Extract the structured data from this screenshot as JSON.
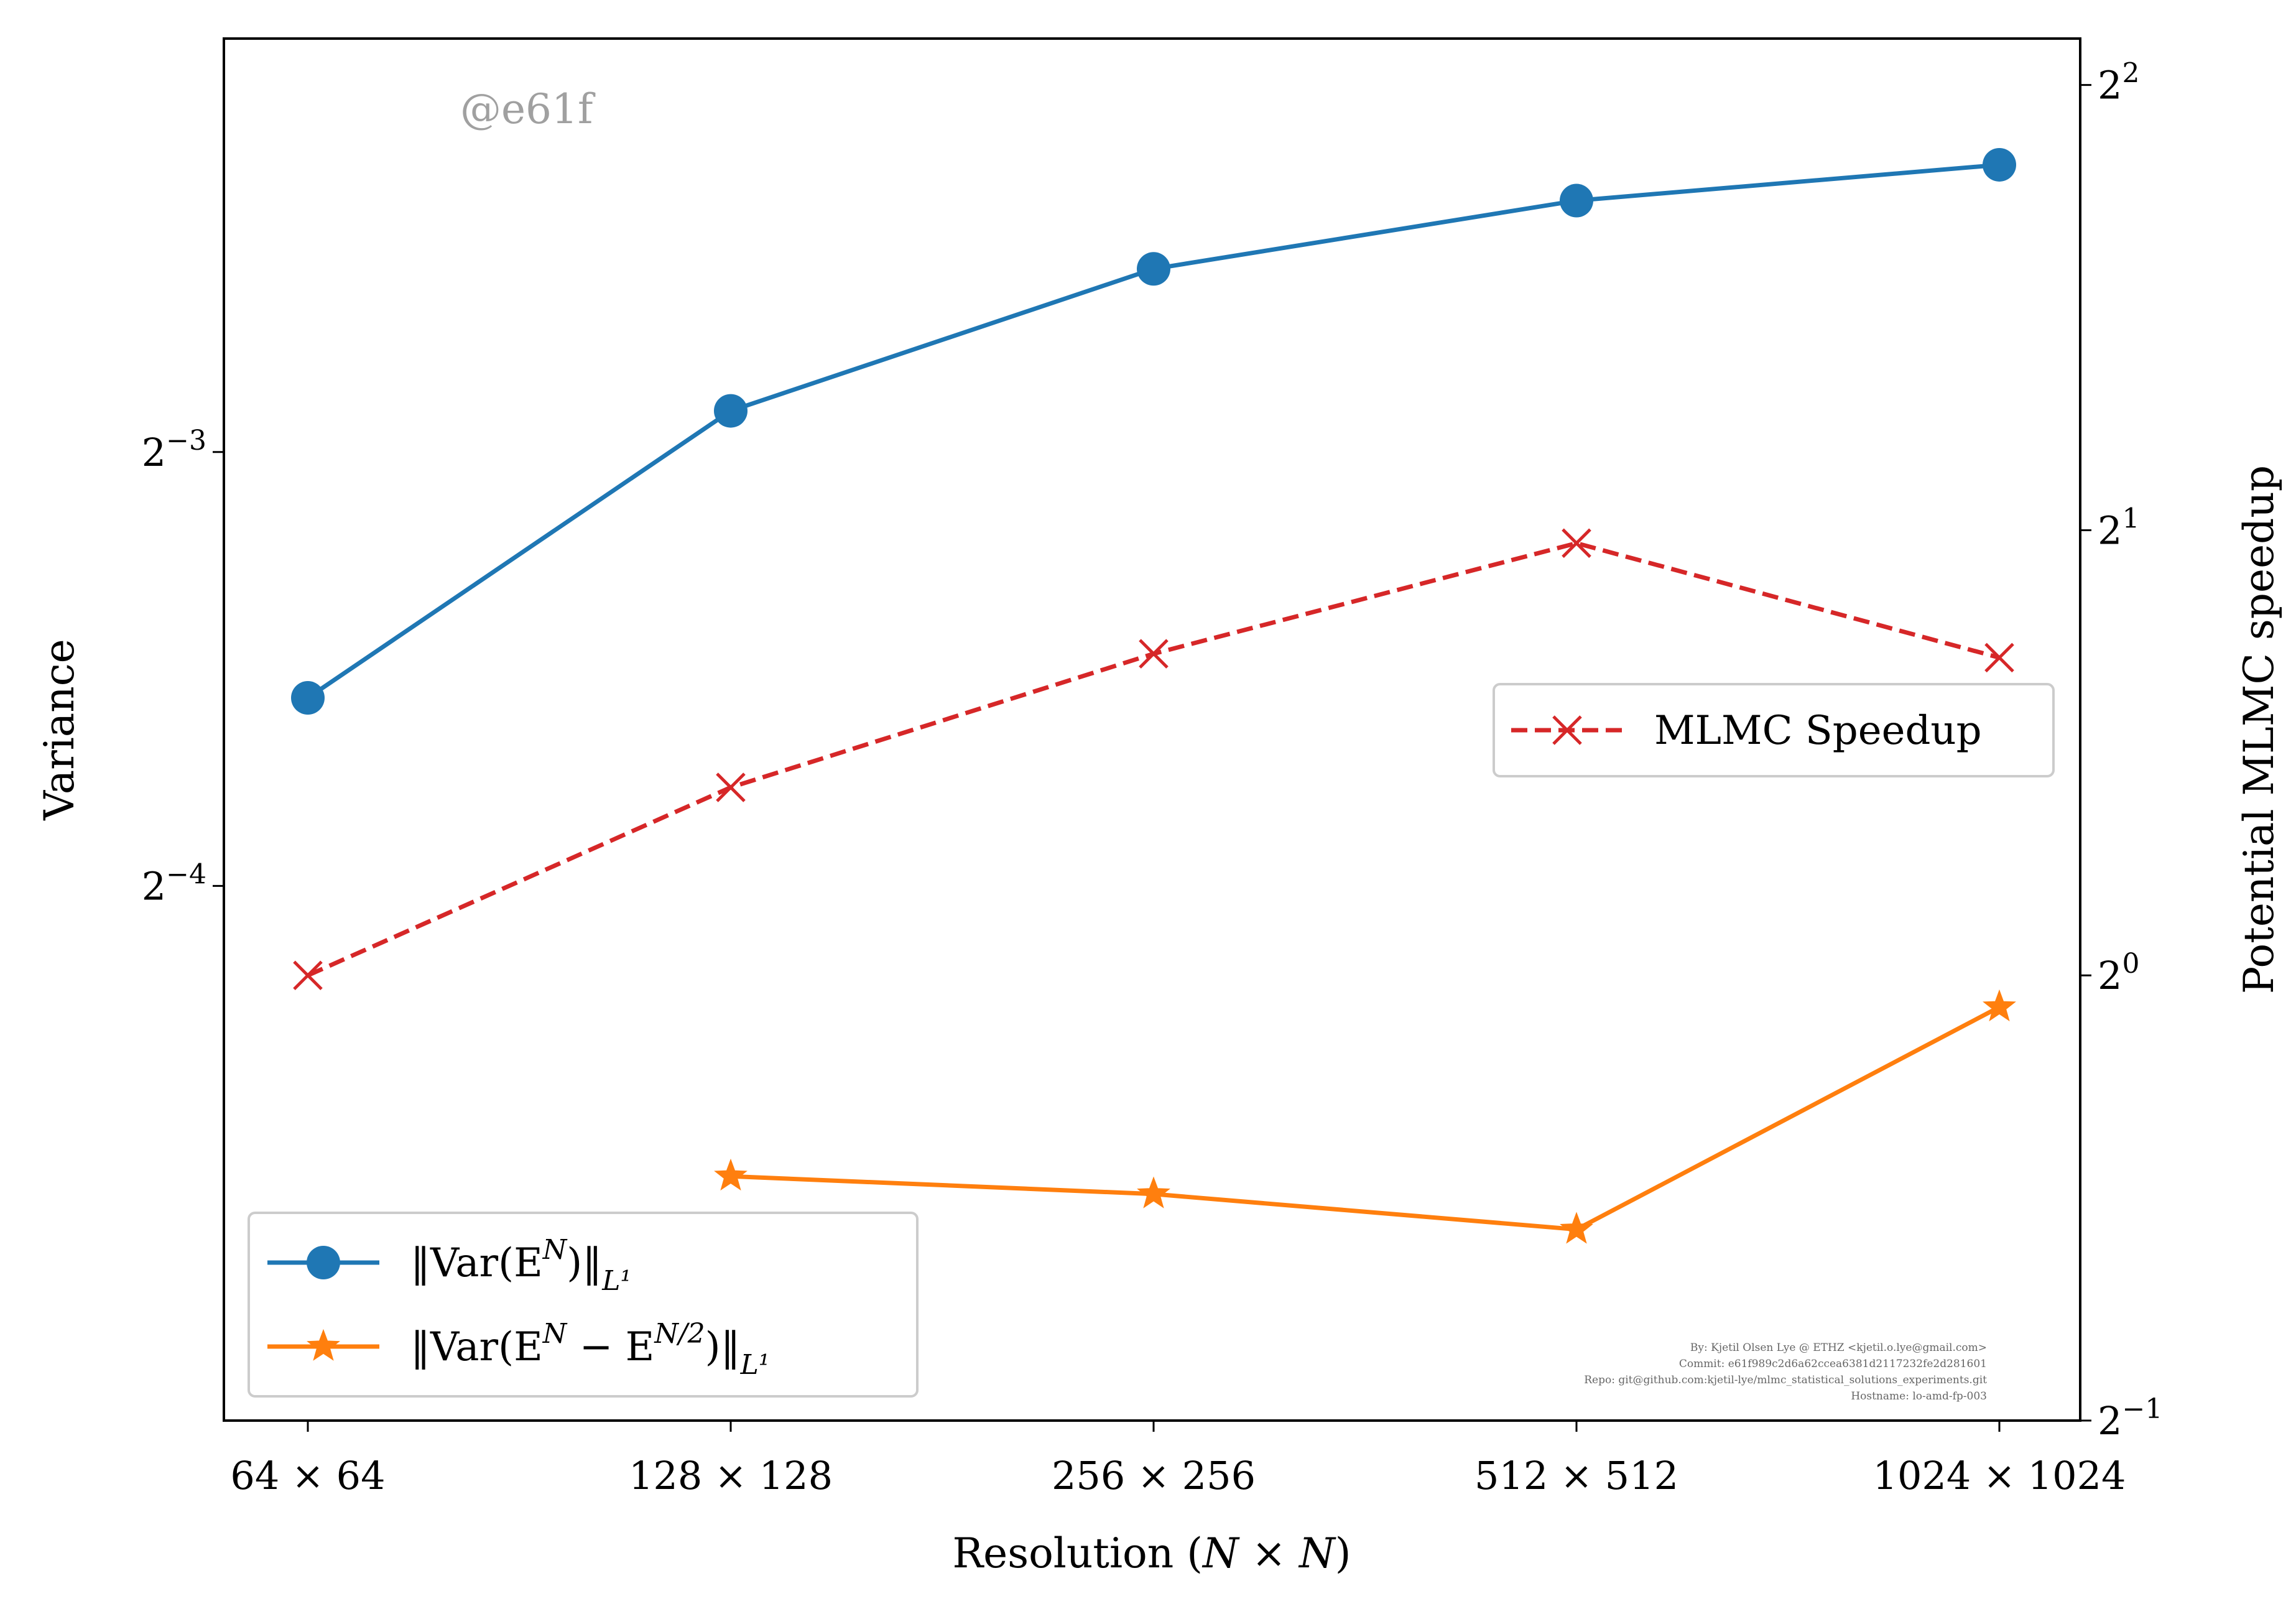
{
  "watermark": "@e61f",
  "footer": [
    "By: Kjetil Olsen Lye @ ETHZ <kjetil.o.lye@gmail.com>",
    "Commit: e61f989c2d6a62ccea6381d2117232fe2d281601",
    "Repo: git@github.com:kjetil-lye/mlmc_statistical_solutions_experiments.git",
    "Hostname: lo-amd-fp-003"
  ],
  "chart_data": {
    "type": "line",
    "title": "",
    "xlabel": "Resolution (N × N)",
    "ylabel_left": "Variance",
    "ylabel_right": "Potential MLMC speedup",
    "categories": [
      "64 × 64",
      "128 × 128",
      "256 × 256",
      "512 × 512",
      "1024 × 1024"
    ],
    "y_left": {
      "scale": "log2",
      "lim": [
        0.0266,
        0.242
      ],
      "ticks": [
        {
          "value": 0.125,
          "base": "2",
          "exp": "−3"
        },
        {
          "value": 0.0625,
          "base": "2",
          "exp": "−4"
        }
      ]
    },
    "y_right": {
      "scale": "log2",
      "lim": [
        0.5,
        4.3
      ],
      "ticks": [
        {
          "value": 4,
          "base": "2",
          "exp": "2"
        },
        {
          "value": 2,
          "base": "2",
          "exp": "1"
        },
        {
          "value": 1,
          "base": "2",
          "exp": "0"
        },
        {
          "value": 0.5,
          "base": "2",
          "exp": "−1"
        }
      ]
    },
    "series": [
      {
        "name": "‖Var(E^N)‖_L¹",
        "legend_main": "‖Var(E",
        "legend_sup": "N",
        "legend_after": ")‖",
        "legend_sub": "L¹",
        "axis": "left",
        "color": "#1f77b4",
        "marker": "circle",
        "dash": "solid",
        "values": [
          0.0844,
          0.1335,
          0.1675,
          0.1868,
          0.1978
        ]
      },
      {
        "name": "‖Var(E^N − E^(N/2))‖_L¹",
        "legend_main": "‖Var(E",
        "legend_sup": "N",
        "legend_after": " − E",
        "legend_sup2": "N/2",
        "legend_after2": ")‖",
        "legend_sub": "L¹",
        "axis": "left",
        "color": "#ff7f0e",
        "marker": "star",
        "dash": "solid",
        "values": [
          null,
          0.0393,
          0.0382,
          0.0361,
          0.0515
        ]
      },
      {
        "name": "MLMC Speedup",
        "axis": "right",
        "color": "#d62728",
        "marker": "x",
        "dash": "dashed",
        "values": [
          1.0,
          1.34,
          1.65,
          1.96,
          1.64
        ]
      }
    ],
    "legend_left_placement": "lower-left",
    "legend_right_placement": "center-right",
    "grid": false
  }
}
